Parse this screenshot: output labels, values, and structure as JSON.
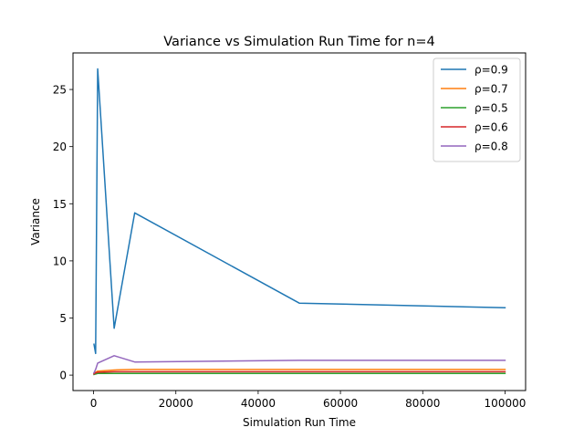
{
  "chart_data": {
    "type": "line",
    "title": "Variance vs Simulation Run Time for n=4",
    "xlabel": "Simulation Run Time",
    "ylabel": "Variance",
    "xlim": [
      -5000,
      105000
    ],
    "ylim": [
      -1.35,
      28.2
    ],
    "xticks": [
      0,
      20000,
      40000,
      60000,
      80000,
      100000
    ],
    "yticks": [
      0,
      5,
      10,
      15,
      20,
      25
    ],
    "grid": false,
    "legend_position": "top-right",
    "series": [
      {
        "name": "ρ=0.9",
        "color": "#1f77b4",
        "x": [
          100,
          500,
          1000,
          5000,
          10000,
          50000,
          100000
        ],
        "y": [
          2.7,
          1.9,
          26.8,
          4.1,
          14.2,
          6.3,
          5.9
        ]
      },
      {
        "name": "ρ=0.7",
        "color": "#ff7f0e",
        "x": [
          100,
          500,
          1000,
          5000,
          10000,
          50000,
          100000
        ],
        "y": [
          0.15,
          0.25,
          0.35,
          0.45,
          0.5,
          0.5,
          0.5
        ]
      },
      {
        "name": "ρ=0.5",
        "color": "#2ca02c",
        "x": [
          100,
          500,
          1000,
          5000,
          10000,
          50000,
          100000
        ],
        "y": [
          0.05,
          0.1,
          0.15,
          0.15,
          0.15,
          0.15,
          0.15
        ]
      },
      {
        "name": "ρ=0.6",
        "color": "#d62728",
        "x": [
          100,
          500,
          1000,
          5000,
          10000,
          50000,
          100000
        ],
        "y": [
          0.1,
          0.2,
          0.25,
          0.3,
          0.3,
          0.3,
          0.3
        ]
      },
      {
        "name": "ρ=0.8",
        "color": "#9467bd",
        "x": [
          100,
          500,
          1000,
          5000,
          10000,
          50000,
          100000
        ],
        "y": [
          0.2,
          0.5,
          1.05,
          1.7,
          1.15,
          1.3,
          1.3
        ]
      }
    ]
  }
}
